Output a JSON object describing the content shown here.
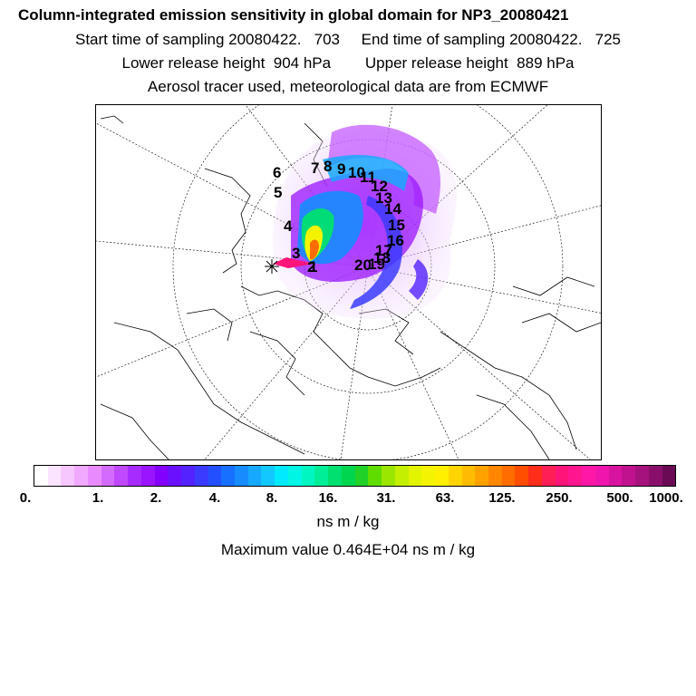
{
  "header": {
    "title": "Column-integrated emission sensitivity in global domain for NP3_20080421",
    "sampling": "Start time of sampling 20080422.   703     End time of sampling 20080422.   725",
    "release": "Lower release height  904 hPa        Upper release height  889 hPa",
    "tracer": "Aerosol tracer used, meteorological data are from ECMWF"
  },
  "map": {
    "trajectory_labels": [
      "1",
      "2",
      "3",
      "4",
      "5",
      "6",
      "7",
      "8",
      "9",
      "10",
      "11",
      "12",
      "13",
      "14",
      "15",
      "16",
      "17",
      "18",
      "19",
      "20"
    ]
  },
  "colorbar": {
    "tick_labels": [
      "0.",
      "1.",
      "2.",
      "4.",
      "8.",
      "16.",
      "31.",
      "63.",
      "125.",
      "250.",
      "500.",
      "1000."
    ],
    "colors": [
      "#ffffff",
      "#fbe4ff",
      "#f6c6ff",
      "#f1a8ff",
      "#e98bff",
      "#d36bff",
      "#c048ff",
      "#a72bff",
      "#9a14ff",
      "#8300ff",
      "#6a10ff",
      "#5422ff",
      "#3b3bff",
      "#2350ff",
      "#1770ff",
      "#168cff",
      "#17a8ff",
      "#12c8ff",
      "#00eaff",
      "#00f6e4",
      "#00f6c0",
      "#00ee98",
      "#00e070",
      "#00d64d",
      "#22d128",
      "#60dd00",
      "#9ae600",
      "#c4ef00",
      "#e2f400",
      "#f4f400",
      "#fff000",
      "#ffd400",
      "#ffbc00",
      "#ffa200",
      "#ff8600",
      "#ff6c00",
      "#ff4e00",
      "#ff2d1a",
      "#ff1e55",
      "#ff147a",
      "#ff1690",
      "#ff18a8",
      "#f016ad",
      "#d8139f",
      "#c0128e",
      "#a6127d",
      "#8a0f6b",
      "#6a0a55"
    ],
    "units": "ns m / kg"
  },
  "max_value": "Maximum value  0.464E+04 ns m / kg"
}
